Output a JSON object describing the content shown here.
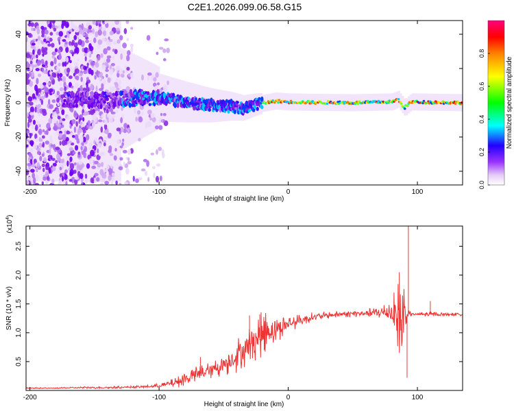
{
  "title": "C2E1.2026.099.06.58.G15",
  "chart_data": [
    {
      "type": "heatmap",
      "name": "spectrogram",
      "xlabel": "Height of straight line (km)",
      "ylabel": "Frequency (Hz)",
      "xlim": [
        -203,
        135
      ],
      "ylim": [
        -48,
        48
      ],
      "xticks": [
        -200,
        -100,
        0,
        100
      ],
      "xtick_labels": [
        "-200",
        "-100",
        "0",
        "100"
      ],
      "yticks": [
        -40,
        -20,
        0,
        20,
        40
      ],
      "ytick_labels": [
        "-40",
        "-20",
        "0",
        "20",
        "40"
      ],
      "colorbar": {
        "label": "Normalized spectral amplitude",
        "range": [
          0,
          1
        ],
        "ticks": [
          0.0,
          0.2,
          0.4,
          0.6,
          0.8
        ],
        "tick_labels": [
          "0.0",
          "0.2",
          "0.4",
          "0.6",
          "0.8"
        ],
        "colors": [
          "#ffffff",
          "#d9b3f2",
          "#8000ff",
          "#0000ff",
          "#00ffff",
          "#00ff00",
          "#ffff00",
          "#ff8000",
          "#ff0000",
          "#ff0080"
        ]
      },
      "ridge": [
        {
          "x": -165,
          "f": 2.0
        },
        {
          "x": -140,
          "f": 1.5
        },
        {
          "x": -120,
          "f": 2.5
        },
        {
          "x": -100,
          "f": 3.0
        },
        {
          "x": -80,
          "f": 0.5
        },
        {
          "x": -60,
          "f": -1.5
        },
        {
          "x": -45,
          "f": -2.0
        },
        {
          "x": -35,
          "f": -3.0
        },
        {
          "x": -25,
          "f": -1.0
        },
        {
          "x": -10,
          "f": 1.0
        },
        {
          "x": 0,
          "f": 0.5
        },
        {
          "x": 20,
          "f": 0.2
        },
        {
          "x": 50,
          "f": 0.0
        },
        {
          "x": 80,
          "f": 0.5
        },
        {
          "x": 85,
          "f": 2.0
        },
        {
          "x": 90,
          "f": -3.0
        },
        {
          "x": 95,
          "f": 0.5
        },
        {
          "x": 135,
          "f": 0.0
        }
      ]
    },
    {
      "type": "line",
      "name": "snr",
      "xlabel": "Height of straight line (km)",
      "ylabel": "SNR (10 * v/v)",
      "yscale_label": "(x10",
      "yscale_exponent": "4",
      "xlim": [
        -203,
        135
      ],
      "ylim": [
        0,
        2.85
      ],
      "xticks": [
        -200,
        -100,
        0,
        100
      ],
      "xtick_labels": [
        "-200",
        "-100",
        "0",
        "100"
      ],
      "yticks": [
        0.5,
        1.0,
        1.5,
        2.0,
        2.5
      ],
      "ytick_labels": [
        "0.5",
        "1.0",
        "1.5",
        "2.0",
        "2.5"
      ],
      "color": "#ee3333",
      "series": [
        {
          "name": "SNR",
          "x": [
            -203,
            -180,
            -160,
            -140,
            -120,
            -105,
            -95,
            -85,
            -75,
            -68,
            -60,
            -50,
            -40,
            -30,
            -22,
            -15,
            -5,
            0,
            10,
            20,
            30,
            40,
            50,
            60,
            70,
            80,
            85,
            88,
            90,
            92,
            95,
            100,
            110,
            120,
            135
          ],
          "y": [
            0.04,
            0.04,
            0.05,
            0.05,
            0.06,
            0.07,
            0.1,
            0.15,
            0.25,
            0.3,
            0.35,
            0.45,
            0.6,
            0.8,
            0.95,
            1.05,
            1.1,
            1.15,
            1.22,
            1.28,
            1.3,
            1.32,
            1.33,
            1.34,
            1.35,
            1.35,
            1.3,
            1.1,
            1.3,
            1.32,
            1.32,
            1.32,
            1.32,
            1.32,
            1.32
          ],
          "noise": [
            0.01,
            0.01,
            0.02,
            0.02,
            0.02,
            0.03,
            0.05,
            0.1,
            0.15,
            0.15,
            0.15,
            0.2,
            0.3,
            0.35,
            0.4,
            0.35,
            0.2,
            0.15,
            0.1,
            0.08,
            0.06,
            0.06,
            0.06,
            0.07,
            0.1,
            0.25,
            0.6,
            1.0,
            0.6,
            0.08,
            0.04,
            0.03,
            0.05,
            0.03,
            0.03
          ]
        }
      ],
      "spikes": [
        {
          "x": -68,
          "y": 0.58
        },
        {
          "x": -30,
          "y": 1.3
        },
        {
          "x": -22,
          "y": 1.32
        },
        {
          "x": -18,
          "y": 0.72
        },
        {
          "x": 86,
          "y": 2.05
        },
        {
          "x": 93,
          "y": 2.85
        },
        {
          "x": 92,
          "y": 0.22
        },
        {
          "x": 110,
          "y": 1.55
        }
      ]
    }
  ]
}
